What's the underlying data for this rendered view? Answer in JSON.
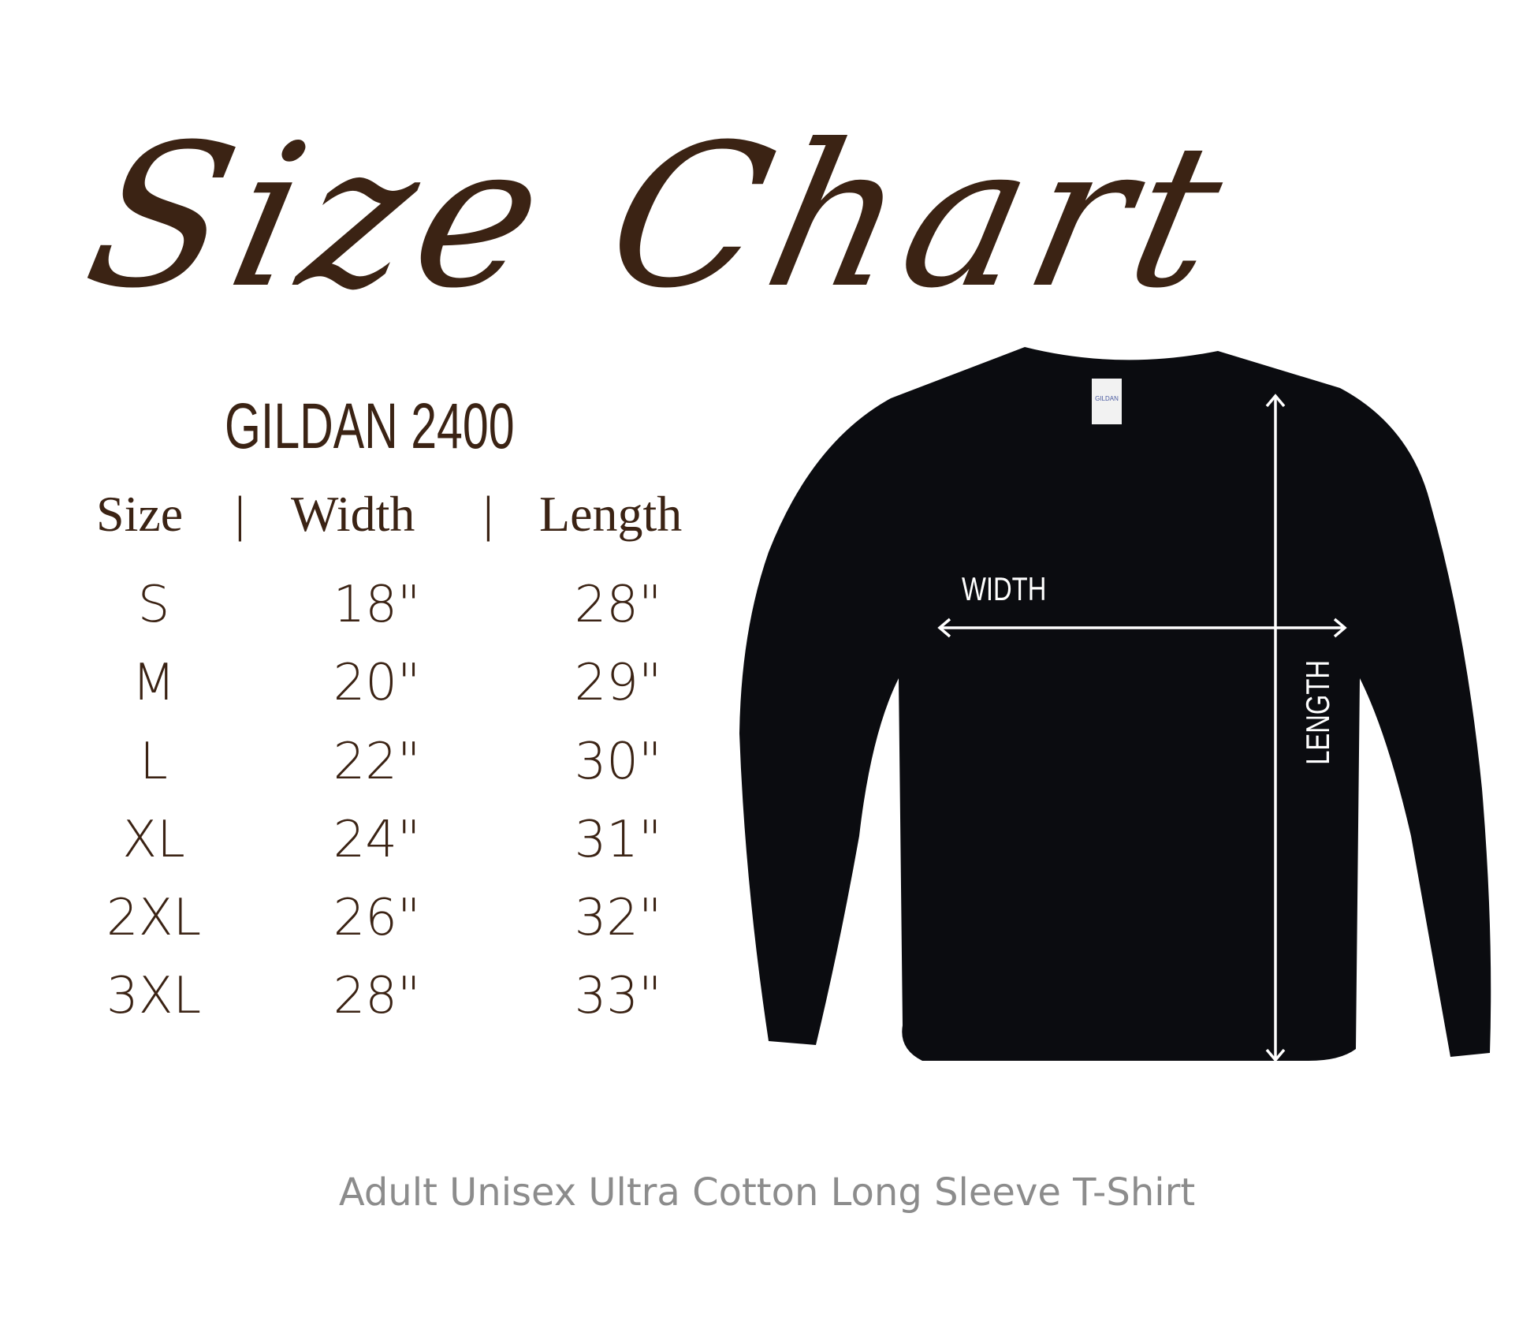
{
  "title": "Size Chart",
  "model": "GILDAN 2400",
  "table": {
    "headers": [
      "Size",
      "Width",
      "Length"
    ],
    "separator": "|",
    "rows": [
      {
        "size": "S",
        "width": "18\"",
        "length": "28\""
      },
      {
        "size": "M",
        "width": "20\"",
        "length": "29\""
      },
      {
        "size": "L",
        "width": "22\"",
        "length": "30\""
      },
      {
        "size": "XL",
        "width": "24\"",
        "length": "31\""
      },
      {
        "size": "2XL",
        "width": "26\"",
        "length": "32\""
      },
      {
        "size": "3XL",
        "width": "28\"",
        "length": "33\""
      }
    ]
  },
  "shirt": {
    "width_label": "WIDTH",
    "length_label": "LENGTH",
    "tag_text": "GILDAN",
    "color": "#0b0c10"
  },
  "footer": "Adult Unisex Ultra Cotton Long Sleeve T-Shirt",
  "colors": {
    "text_brown": "#3b2314",
    "footer_gray": "#8c8c8c"
  }
}
